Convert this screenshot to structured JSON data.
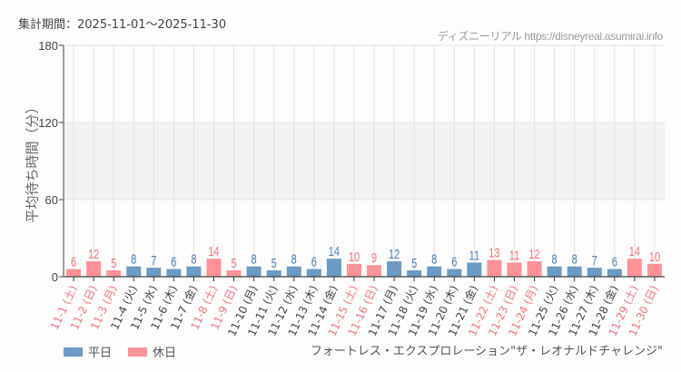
{
  "header": {
    "period_label": "集計期間：2025-11-01～2025-11-30",
    "credit": "ディズニーリアル https://disneyreal.asumirai.info"
  },
  "attraction_name": "フォートレス・エクスプロレーション\"ザ・レオナルドチャレンジ\"",
  "legend": [
    {
      "label": "平日",
      "color": "#6b9ac4"
    },
    {
      "label": "休日",
      "color": "#ff9198"
    }
  ],
  "colors": {
    "weekday": "#6b9ac4",
    "holiday": "#ff9198",
    "weekday_text": "#4a7fb5",
    "holiday_text": "#f5737c",
    "weekday_label": "#444444",
    "band": "#f2f2f2",
    "grid": "#e3e3e3"
  },
  "chart_data": {
    "type": "bar",
    "title": "集計期間：2025-11-01～2025-11-30",
    "xlabel": "",
    "ylabel": "平均待ち時間（分）",
    "ylim": [
      0,
      180
    ],
    "yticks": [
      0,
      60,
      120,
      180
    ],
    "shaded_band": [
      60,
      120
    ],
    "grid": true,
    "legend_position": "bottom-left",
    "categories": [
      "11-1 (土)",
      "11-2 (日)",
      "11-3 (月)",
      "11-4 (火)",
      "11-5 (水)",
      "11-6 (木)",
      "11-7 (金)",
      "11-8 (土)",
      "11-9 (日)",
      "11-10 (月)",
      "11-11 (火)",
      "11-12 (水)",
      "11-13 (木)",
      "11-14 (金)",
      "11-15 (土)",
      "11-16 (日)",
      "11-17 (月)",
      "11-18 (火)",
      "11-19 (水)",
      "11-20 (木)",
      "11-21 (金)",
      "11-22 (土)",
      "11-23 (日)",
      "11-24 (月)",
      "11-25 (火)",
      "11-26 (水)",
      "11-27 (木)",
      "11-28 (金)",
      "11-29 (土)",
      "11-30 (日)"
    ],
    "values": [
      6,
      12,
      5,
      8,
      7,
      6,
      8,
      14,
      5,
      8,
      5,
      8,
      6,
      14,
      10,
      9,
      12,
      5,
      8,
      6,
      11,
      13,
      11,
      12,
      8,
      8,
      7,
      6,
      14,
      10
    ],
    "day_type": [
      "休日",
      "休日",
      "休日",
      "平日",
      "平日",
      "平日",
      "平日",
      "休日",
      "休日",
      "平日",
      "平日",
      "平日",
      "平日",
      "平日",
      "休日",
      "休日",
      "平日",
      "平日",
      "平日",
      "平日",
      "平日",
      "休日",
      "休日",
      "休日",
      "平日",
      "平日",
      "平日",
      "平日",
      "休日",
      "休日"
    ],
    "series": [
      {
        "name": "平日",
        "color": "#6b9ac4"
      },
      {
        "name": "休日",
        "color": "#ff9198"
      }
    ]
  }
}
